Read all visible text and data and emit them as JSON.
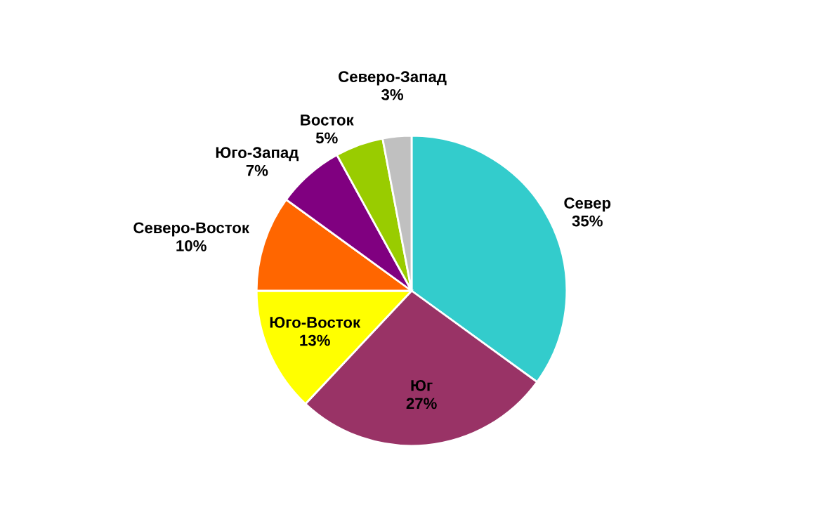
{
  "chart_data": {
    "type": "pie",
    "categories": [
      "Север",
      "Юг",
      "Юго-Восток",
      "Северо-Восток",
      "Юго-Запад",
      "Восток",
      "Северо-Запад"
    ],
    "values": [
      35,
      27,
      13,
      10,
      7,
      5,
      3
    ],
    "colors": [
      "#33cccc",
      "#993366",
      "#ffff00",
      "#ff6600",
      "#800080",
      "#99cc00",
      "#c0c0c0"
    ],
    "value_labels": [
      "35%",
      "27%",
      "13%",
      "10%",
      "7%",
      "5%",
      "3%"
    ]
  }
}
